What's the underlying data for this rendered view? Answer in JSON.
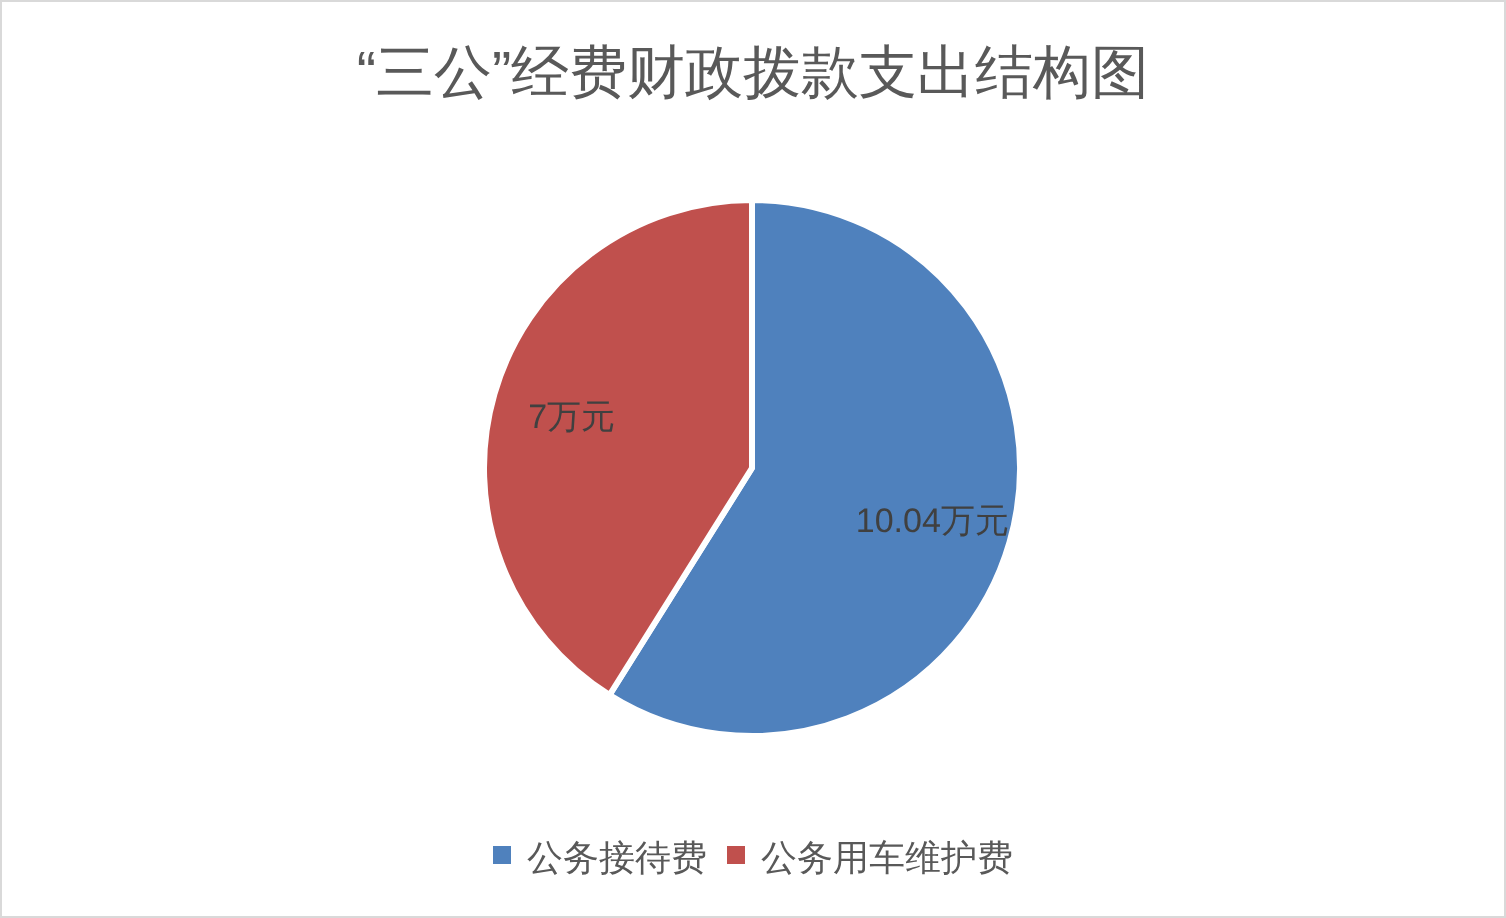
{
  "chart_data": {
    "type": "pie",
    "title": "“三公”经费财政拨款支出结构图",
    "categories": [
      "公务接待费",
      "公务用车维护费"
    ],
    "values": [
      10.04,
      7
    ],
    "colors": [
      "#4f81bd",
      "#c0504d"
    ],
    "value_labels": [
      "10.04万元",
      "7万元"
    ],
    "legend": "bottom"
  }
}
